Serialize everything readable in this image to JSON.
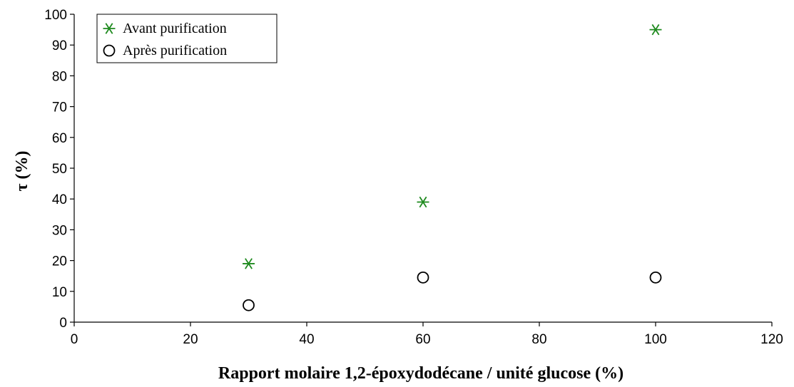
{
  "chart_data": {
    "type": "scatter",
    "title": "",
    "xlabel": "Rapport molaire 1,2-époxydodécane / unité glucose (%)",
    "ylabel": "τ (%)",
    "xlim": [
      0,
      120
    ],
    "ylim": [
      0,
      100
    ],
    "x_ticks": [
      "0",
      "20",
      "40",
      "60",
      "80",
      "100",
      "120"
    ],
    "y_ticks": [
      "0",
      "10",
      "20",
      "30",
      "40",
      "50",
      "60",
      "70",
      "80",
      "90",
      "100"
    ],
    "grid": false,
    "legend_position": "top-left",
    "series": [
      {
        "name": "Avant purification",
        "marker": "asterisk",
        "color": "#1e8a1e",
        "x": [
          30,
          60,
          100
        ],
        "y": [
          19,
          39,
          95
        ]
      },
      {
        "name": "Après purification",
        "marker": "circle",
        "color": "#000000",
        "x": [
          30,
          60,
          100
        ],
        "y": [
          5.5,
          14.5,
          14.5
        ]
      }
    ]
  }
}
